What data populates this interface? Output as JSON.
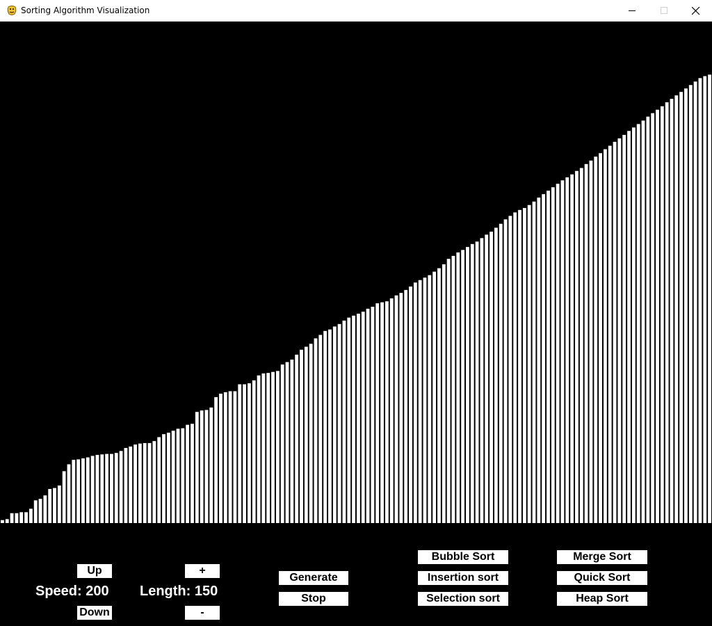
{
  "window": {
    "title": "Sorting Algorithm Visualization",
    "icon": "pygame-snake-icon",
    "controls": [
      "minimize-icon",
      "maximize-icon",
      "close-icon"
    ]
  },
  "colors": {
    "background": "#000000",
    "bar": "#ffffff",
    "button_bg": "#ffffff",
    "button_text": "#000000"
  },
  "speed": {
    "up_label": "Up",
    "down_label": "Down",
    "text": "Speed: 200",
    "value": 200
  },
  "length": {
    "plus_label": "+",
    "minus_label": "-",
    "text": "Length: 150",
    "value": 150
  },
  "controls": {
    "generate_label": "Generate",
    "stop_label": "Stop"
  },
  "algorithms": {
    "bubble": "Bubble Sort",
    "insertion": "Insertion sort",
    "selection": "Selection sort",
    "merge": "Merge Sort",
    "quick": "Quick Sort",
    "heap": "Heap Sort"
  },
  "bars": {
    "max_value": 1000,
    "values": [
      6,
      8,
      20,
      20,
      22,
      22,
      29,
      46,
      49,
      56,
      69,
      71,
      76,
      105,
      119,
      128,
      129,
      131,
      133,
      136,
      138,
      139,
      140,
      140,
      142,
      146,
      152,
      155,
      159,
      161,
      162,
      162,
      166,
      174,
      180,
      183,
      187,
      191,
      192,
      199,
      201,
      225,
      228,
      229,
      234,
      255,
      262,
      265,
      267,
      267,
      281,
      281,
      283,
      289,
      299,
      303,
      304,
      306,
      308,
      321,
      326,
      331,
      341,
      351,
      357,
      363,
      374,
      381,
      389,
      392,
      398,
      403,
      410,
      416,
      420,
      424,
      428,
      434,
      438,
      445,
      447,
      449,
      455,
      461,
      466,
      472,
      479,
      487,
      492,
      497,
      502,
      509,
      516,
      524,
      535,
      541,
      548,
      553,
      559,
      565,
      570,
      577,
      584,
      590,
      598,
      606,
      615,
      622,
      629,
      634,
      638,
      644,
      651,
      659,
      666,
      673,
      680,
      687,
      694,
      700,
      706,
      713,
      719,
      727,
      734,
      742,
      749,
      757,
      764,
      772,
      779,
      786,
      794,
      801,
      808,
      815,
      823,
      830,
      837,
      844,
      852,
      859,
      866,
      873,
      880,
      887,
      894,
      901,
      905,
      908
    ]
  }
}
